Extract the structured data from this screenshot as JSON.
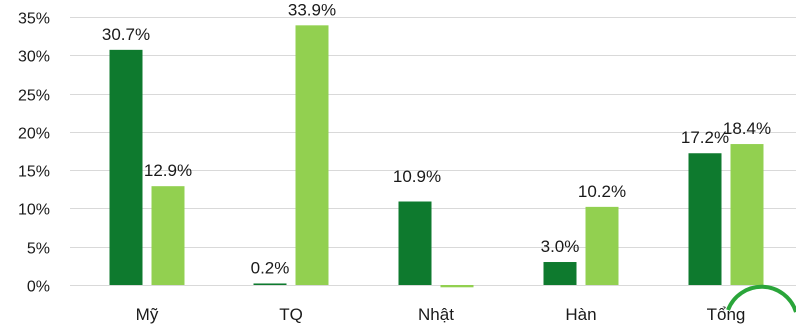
{
  "chart_data": {
    "type": "bar",
    "categories": [
      "Mỹ",
      "TQ",
      "Nhật",
      "Hàn",
      "Tổng"
    ],
    "series": [
      {
        "values": [
          30.7,
          0.2,
          10.9,
          3.0,
          17.2
        ],
        "labels": [
          "30.7%",
          "0.2%",
          "",
          "3.0%",
          "17.2%"
        ]
      },
      {
        "values": [
          12.9,
          33.9,
          -0.3,
          10.2,
          18.4
        ],
        "labels": [
          "12.9%",
          "33.9%",
          "",
          "10.2%",
          "18.4%"
        ]
      }
    ],
    "extra_labels": [
      {
        "text": "10.9%"
      }
    ],
    "yticks": [
      "0%",
      "5%",
      "10%",
      "15%",
      "20%",
      "25%",
      "30%",
      "35%"
    ],
    "ylim": [
      0,
      35
    ],
    "grid": true,
    "legend": "none",
    "colors": [
      "#0e7a2e",
      "#92d050"
    ],
    "annotation_color": "#2aa53a"
  }
}
